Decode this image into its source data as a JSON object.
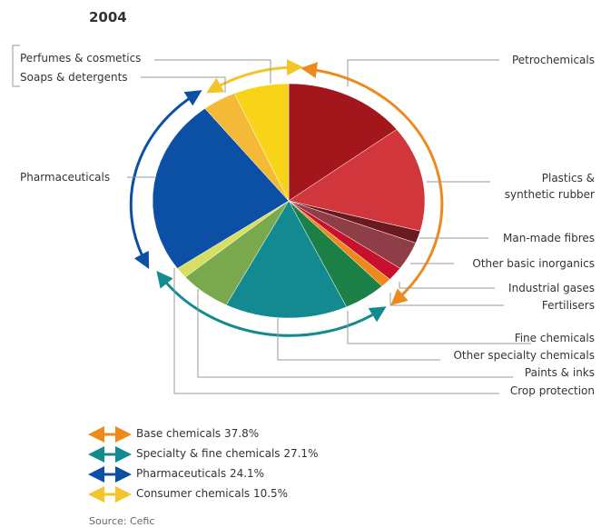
{
  "chart_data": {
    "type": "pie",
    "title": "2004",
    "categories": [
      "Petrochemicals",
      "Plastics & synthetic rubber",
      "Man-made fibres",
      "Other basic inorganics",
      "Industrial gases",
      "Fertilisers",
      "Fine chemicals",
      "Other specialty chemicals",
      "Paints & inks",
      "Crop protection",
      "Pharmaceuticals",
      "Soaps & detergents",
      "Perfumes & cosmetics"
    ],
    "values": [
      14.5,
      14.5,
      1.7,
      3.9,
      1.9,
      1.3,
      5.0,
      14.5,
      6.1,
      1.5,
      24.1,
      4.0,
      6.5
    ],
    "colors": [
      "#a3161c",
      "#d2363d",
      "#6b1a1f",
      "#8f3d47",
      "#c8102e",
      "#ee8a1c",
      "#1c7f45",
      "#138a8f",
      "#7aa84c",
      "#d6df62",
      "#0b50a4",
      "#f4b937",
      "#f8d418"
    ],
    "legend": [
      {
        "label": "Base chemicals 37.8%",
        "color": "#ee8a1c"
      },
      {
        "label": "Specialty & fine chemicals 27.1%",
        "color": "#138a8f"
      },
      {
        "label": "Pharmaceuticals 24.1%",
        "color": "#0b50a4"
      },
      {
        "label": "Consumer chemicals 10.5%",
        "color": "#f4c52a"
      }
    ],
    "source": "Source: Cefic"
  }
}
